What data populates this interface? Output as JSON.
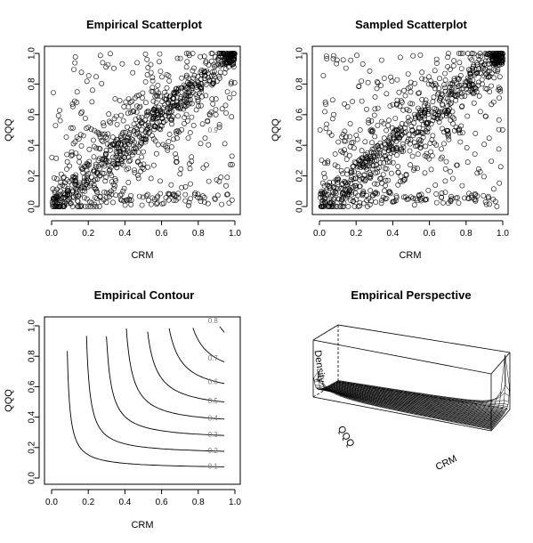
{
  "chart_data": [
    {
      "type": "scatter",
      "title": "Empirical Scatterplot",
      "xlabel": "CRM",
      "ylabel": "QQQ",
      "xlim": [
        0,
        1
      ],
      "ylim": [
        0,
        1
      ],
      "xticks": [
        "0.0",
        "0.2",
        "0.4",
        "0.6",
        "0.8",
        "1.0"
      ],
      "yticks": [
        "0.0",
        "0.2",
        "0.4",
        "0.6",
        "0.8",
        "1.0"
      ],
      "marker": "open-circle",
      "n_points": 1000,
      "dependence": "positive, concentrated along the diagonal with clustering in both lower-left and upper-right corners"
    },
    {
      "type": "scatter",
      "title": "Sampled Scatterplot",
      "xlabel": "CRM",
      "ylabel": "QQQ",
      "xlim": [
        0,
        1
      ],
      "ylim": [
        0,
        1
      ],
      "xticks": [
        "0.0",
        "0.2",
        "0.4",
        "0.6",
        "0.8",
        "1.0"
      ],
      "yticks": [
        "0.0",
        "0.2",
        "0.4",
        "0.6",
        "0.8",
        "1.0"
      ],
      "marker": "open-circle",
      "n_points": 1000,
      "dependence": "positive, concentrated along the diagonal with clustering in both lower-left and upper-right corners"
    },
    {
      "type": "contour",
      "title": "Empirical Contour",
      "xlabel": "CRM",
      "ylabel": "QQQ",
      "xlim": [
        0,
        1
      ],
      "ylim": [
        0,
        1
      ],
      "xticks": [
        "0.0",
        "0.2",
        "0.4",
        "0.6",
        "0.8",
        "1.0"
      ],
      "yticks": [
        "0.0",
        "0.2",
        "0.4",
        "0.6",
        "0.8",
        "1.0"
      ],
      "levels": [
        0.1,
        0.2,
        0.3,
        0.4,
        0.5,
        0.6,
        0.7,
        0.8,
        0.9
      ],
      "level_labels": [
        "0.1",
        "0.2",
        "0.3",
        "0.4",
        "0.5",
        "0.6",
        "0.7",
        "0.8",
        "0.9"
      ]
    },
    {
      "type": "surface",
      "title": "Empirical Perspective",
      "xlabel": "CRM",
      "ylabel": "QQQ",
      "zlabel": "Density",
      "peaks": [
        "near (0,0)",
        "near (1,1)"
      ]
    }
  ]
}
